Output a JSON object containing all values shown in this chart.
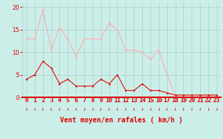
{
  "x": [
    0,
    1,
    2,
    3,
    4,
    5,
    6,
    7,
    8,
    9,
    10,
    11,
    12,
    13,
    14,
    15,
    16,
    17,
    18,
    19,
    20,
    21,
    22,
    23
  ],
  "wind_avg": [
    4,
    5,
    8,
    6.5,
    3,
    4,
    2.5,
    2.5,
    2.5,
    4,
    3,
    5,
    1.5,
    1.5,
    3,
    1.5,
    1.5,
    1,
    0.5,
    0.5,
    0.5,
    0.5,
    0.5,
    0.5
  ],
  "wind_gust": [
    13,
    13,
    19.5,
    10.5,
    15.5,
    13,
    9,
    13,
    13,
    13,
    16.5,
    15,
    10.5,
    10.5,
    10,
    8.5,
    10.5,
    5,
    0.5,
    0.5,
    0.5,
    0.5,
    0.5,
    0.5
  ],
  "color_avg": "#dd0000",
  "color_gust": "#ffaaaa",
  "bg_color": "#cceee8",
  "grid_color": "#aacccc",
  "xlabel": "Vent moyen/en rafales ( km/h )",
  "yticks": [
    0,
    5,
    10,
    15,
    20
  ],
  "ylim": [
    0,
    21
  ],
  "xlim_min": -0.5,
  "xlim_max": 23.5,
  "tick_fontsize": 6,
  "label_fontsize": 7
}
